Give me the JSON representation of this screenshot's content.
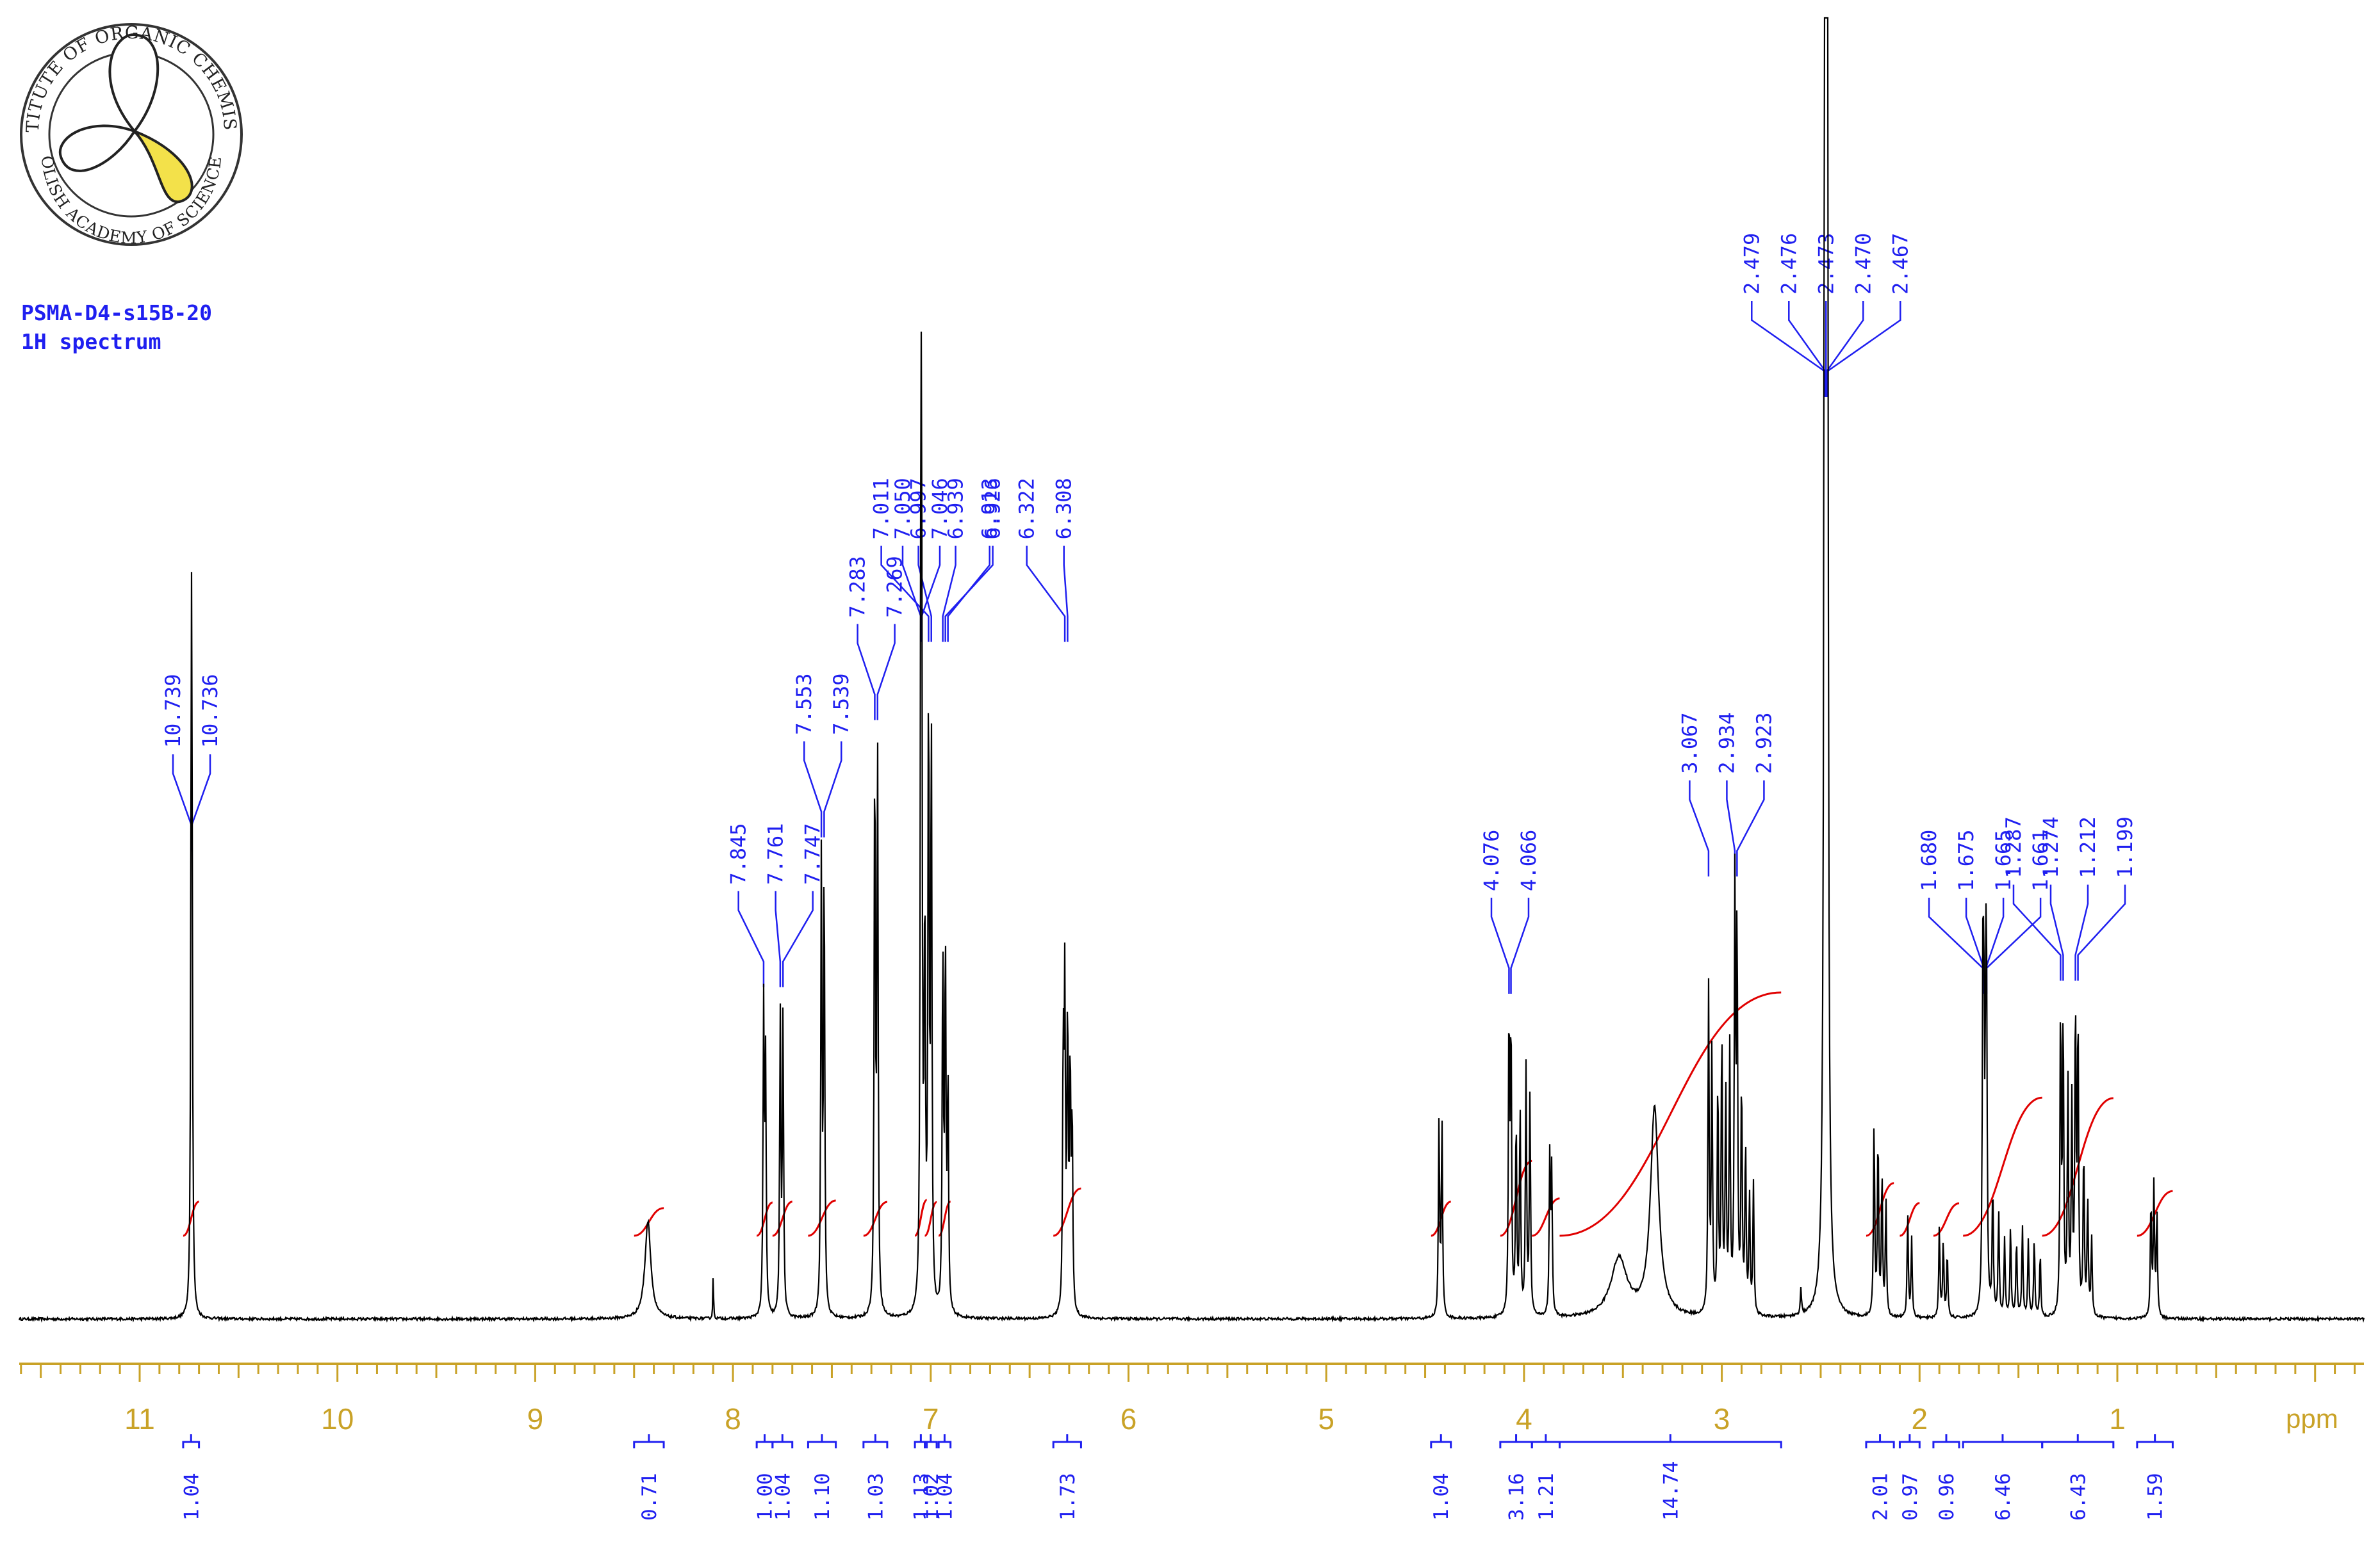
{
  "logo": {
    "text_top": "INSTITUTE OF ORGANIC CHEMISTRY",
    "text_bottom": "POLISH ACADEMY OF SCIENCES"
  },
  "header": {
    "sample_name": "PSMA-D4-s15B-20",
    "spectrum_type": "1H spectrum"
  },
  "colors": {
    "spectrum": "#000000",
    "labels": "#1f1ff0",
    "integral_curve": "#e00000",
    "axis": "#c9a227"
  },
  "chart_data": {
    "type": "line",
    "xlabel": "ppm",
    "xlim": [
      11.6,
      -0.2
    ],
    "x_reversed": true,
    "x_ticks": [
      11,
      10,
      9,
      8,
      7,
      6,
      5,
      4,
      3,
      2,
      1
    ],
    "peak_labels": [
      {
        "group": "10.74",
        "values": [
          "10.739",
          "10.736"
        ]
      },
      {
        "group": "7.8",
        "values": [
          "7.845",
          "7.761",
          "7.747"
        ]
      },
      {
        "group": "7.54",
        "values": [
          "7.553",
          "7.539"
        ]
      },
      {
        "group": "7.27",
        "values": [
          "7.283",
          "7.269"
        ]
      },
      {
        "group": "7.05",
        "values": [
          "7.050",
          "7.046"
        ]
      },
      {
        "group": "6.96",
        "values": [
          "7.011",
          "6.997",
          "6.939",
          "6.926"
        ]
      },
      {
        "group": "6.3",
        "values": [
          "6.913",
          "6.322",
          "6.308"
        ]
      },
      {
        "group": "4.07",
        "values": [
          "4.076",
          "4.066"
        ]
      },
      {
        "group": "2.95",
        "values": [
          "3.067",
          "2.934",
          "2.923"
        ]
      },
      {
        "group": "2.47",
        "values": [
          "2.479",
          "2.476",
          "2.473",
          "2.470",
          "2.467"
        ]
      },
      {
        "group": "1.67",
        "values": [
          "1.680",
          "1.675",
          "1.665",
          "1.661"
        ]
      },
      {
        "group": "1.25",
        "values": [
          "1.287",
          "1.274",
          "1.212",
          "1.199"
        ]
      }
    ],
    "integrals": [
      {
        "from": 10.78,
        "to": 10.7,
        "value": "1.04"
      },
      {
        "from": 8.5,
        "to": 8.35,
        "value": "0.71"
      },
      {
        "from": 7.88,
        "to": 7.8,
        "value": "1.00"
      },
      {
        "from": 7.8,
        "to": 7.7,
        "value": "1.04"
      },
      {
        "from": 7.62,
        "to": 7.48,
        "value": "1.10"
      },
      {
        "from": 7.34,
        "to": 7.22,
        "value": "1.03"
      },
      {
        "from": 7.08,
        "to": 7.02,
        "value": "1.13"
      },
      {
        "from": 7.03,
        "to": 6.97,
        "value": "1.02"
      },
      {
        "from": 6.96,
        "to": 6.9,
        "value": "1.04"
      },
      {
        "from": 6.38,
        "to": 6.24,
        "value": "1.73"
      },
      {
        "from": 4.47,
        "to": 4.37,
        "value": "1.04"
      },
      {
        "from": 4.12,
        "to": 3.96,
        "value": "3.16"
      },
      {
        "from": 3.96,
        "to": 3.82,
        "value": "1.21"
      },
      {
        "from": 3.82,
        "to": 2.7,
        "value": "14.74"
      },
      {
        "from": 2.27,
        "to": 2.13,
        "value": "2.01"
      },
      {
        "from": 2.1,
        "to": 2.0,
        "value": "0.97"
      },
      {
        "from": 1.93,
        "to": 1.8,
        "value": "0.96"
      },
      {
        "from": 1.78,
        "to": 1.38,
        "value": "6.46"
      },
      {
        "from": 1.38,
        "to": 1.02,
        "value": "6.43"
      },
      {
        "from": 0.9,
        "to": 0.72,
        "value": "1.59"
      }
    ],
    "peaks": [
      {
        "ppm": 10.739,
        "h": 0.34
      },
      {
        "ppm": 10.736,
        "h": 0.34
      },
      {
        "ppm": 8.43,
        "h": 0.075,
        "w": 0.018
      },
      {
        "ppm": 8.1,
        "h": 0.036,
        "w": 0.002
      },
      {
        "ppm": 7.845,
        "h": 0.235
      },
      {
        "ppm": 7.835,
        "h": 0.19
      },
      {
        "ppm": 7.761,
        "h": 0.23
      },
      {
        "ppm": 7.747,
        "h": 0.23
      },
      {
        "ppm": 7.553,
        "h": 0.35
      },
      {
        "ppm": 7.539,
        "h": 0.35
      },
      {
        "ppm": 7.283,
        "h": 0.44
      },
      {
        "ppm": 7.269,
        "h": 0.44
      },
      {
        "ppm": 7.05,
        "h": 0.5
      },
      {
        "ppm": 7.046,
        "h": 0.48
      },
      {
        "ppm": 7.03,
        "h": 0.3
      },
      {
        "ppm": 7.011,
        "h": 0.48
      },
      {
        "ppm": 6.997,
        "h": 0.45
      },
      {
        "ppm": 6.939,
        "h": 0.28
      },
      {
        "ppm": 6.926,
        "h": 0.28
      },
      {
        "ppm": 6.913,
        "h": 0.18
      },
      {
        "ppm": 6.33,
        "h": 0.2
      },
      {
        "ppm": 6.322,
        "h": 0.24
      },
      {
        "ppm": 6.308,
        "h": 0.23
      },
      {
        "ppm": 6.295,
        "h": 0.19
      },
      {
        "ppm": 6.285,
        "h": 0.15
      },
      {
        "ppm": 4.43,
        "h": 0.15
      },
      {
        "ppm": 4.415,
        "h": 0.15
      },
      {
        "ppm": 4.076,
        "h": 0.23
      },
      {
        "ppm": 4.066,
        "h": 0.22
      },
      {
        "ppm": 4.04,
        "h": 0.15
      },
      {
        "ppm": 4.02,
        "h": 0.16
      },
      {
        "ppm": 3.99,
        "h": 0.19
      },
      {
        "ppm": 3.97,
        "h": 0.17
      },
      {
        "ppm": 3.87,
        "h": 0.12
      },
      {
        "ppm": 3.86,
        "h": 0.11
      },
      {
        "ppm": 3.52,
        "h": 0.045,
        "w": 0.05
      },
      {
        "ppm": 3.34,
        "h": 0.16,
        "w": 0.025
      },
      {
        "ppm": 3.067,
        "h": 0.25
      },
      {
        "ppm": 3.05,
        "h": 0.2
      },
      {
        "ppm": 3.02,
        "h": 0.18
      },
      {
        "ppm": 3.0,
        "h": 0.22
      },
      {
        "ppm": 2.98,
        "h": 0.17
      },
      {
        "ppm": 2.96,
        "h": 0.2
      },
      {
        "ppm": 2.934,
        "h": 0.32
      },
      {
        "ppm": 2.923,
        "h": 0.3
      },
      {
        "ppm": 2.9,
        "h": 0.18
      },
      {
        "ppm": 2.88,
        "h": 0.13
      },
      {
        "ppm": 2.86,
        "h": 0.09
      },
      {
        "ppm": 2.84,
        "h": 0.1
      },
      {
        "ppm": 2.6,
        "h": 0.02
      },
      {
        "ppm": 2.479,
        "h": 1.0
      },
      {
        "ppm": 2.476,
        "h": 1.0
      },
      {
        "ppm": 2.473,
        "h": 1.0
      },
      {
        "ppm": 2.47,
        "h": 1.0
      },
      {
        "ppm": 2.467,
        "h": 1.0
      },
      {
        "ppm": 2.23,
        "h": 0.15
      },
      {
        "ppm": 2.21,
        "h": 0.14
      },
      {
        "ppm": 2.19,
        "h": 0.11
      },
      {
        "ppm": 2.17,
        "h": 0.09
      },
      {
        "ppm": 2.06,
        "h": 0.08
      },
      {
        "ppm": 2.04,
        "h": 0.06
      },
      {
        "ppm": 1.9,
        "h": 0.07
      },
      {
        "ppm": 1.88,
        "h": 0.06
      },
      {
        "ppm": 1.86,
        "h": 0.05
      },
      {
        "ppm": 1.68,
        "h": 0.23
      },
      {
        "ppm": 1.675,
        "h": 0.2
      },
      {
        "ppm": 1.665,
        "h": 0.2
      },
      {
        "ppm": 1.661,
        "h": 0.18
      },
      {
        "ppm": 1.63,
        "h": 0.1
      },
      {
        "ppm": 1.6,
        "h": 0.08
      },
      {
        "ppm": 1.57,
        "h": 0.06
      },
      {
        "ppm": 1.54,
        "h": 0.07
      },
      {
        "ppm": 1.51,
        "h": 0.06
      },
      {
        "ppm": 1.48,
        "h": 0.07
      },
      {
        "ppm": 1.45,
        "h": 0.06
      },
      {
        "ppm": 1.42,
        "h": 0.06
      },
      {
        "ppm": 1.39,
        "h": 0.05
      },
      {
        "ppm": 1.287,
        "h": 0.24
      },
      {
        "ppm": 1.274,
        "h": 0.23
      },
      {
        "ppm": 1.25,
        "h": 0.18
      },
      {
        "ppm": 1.23,
        "h": 0.16
      },
      {
        "ppm": 1.212,
        "h": 0.24
      },
      {
        "ppm": 1.199,
        "h": 0.23
      },
      {
        "ppm": 1.17,
        "h": 0.13
      },
      {
        "ppm": 1.15,
        "h": 0.09
      },
      {
        "ppm": 1.13,
        "h": 0.06
      },
      {
        "ppm": 0.83,
        "h": 0.09
      },
      {
        "ppm": 0.815,
        "h": 0.1
      },
      {
        "ppm": 0.8,
        "h": 0.08
      }
    ]
  }
}
